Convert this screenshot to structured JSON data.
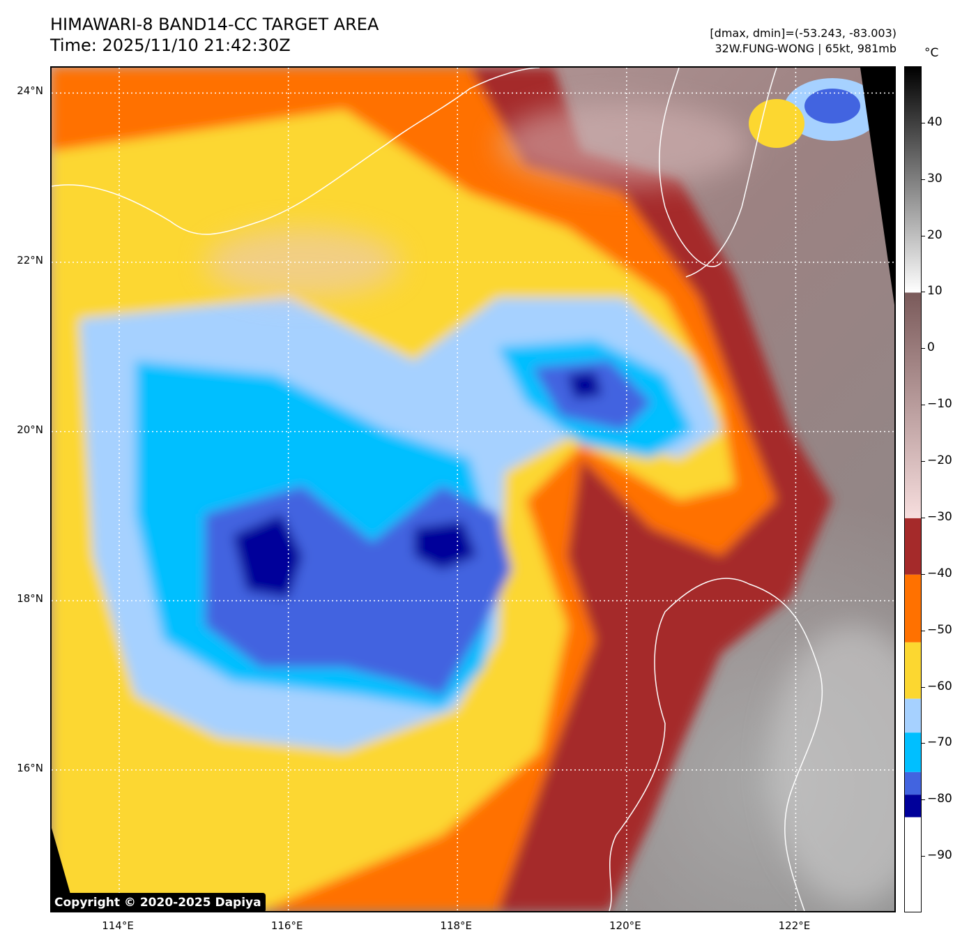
{
  "title": {
    "line1": "HIMAWARI-8 BAND14-CC TARGET AREA",
    "line2": "Time: 2025/11/10 21:42:30Z"
  },
  "meta": {
    "dmax_dmin": "[dmax, dmin]=(-53.243, -83.003)",
    "storm": "32W.FUNG-WONG | 65kt, 981mb"
  },
  "copyright": "Copyright © 2020-2025 Dapiya",
  "map": {
    "lat_labels": [
      "24°N",
      "22°N",
      "20°N",
      "18°N",
      "16°N"
    ],
    "lon_labels": [
      "114°E",
      "116°E",
      "118°E",
      "120°E",
      "122°E"
    ],
    "lat_ticks": [
      24,
      22,
      20,
      18,
      16
    ],
    "lon_ticks": [
      114,
      116,
      118,
      120,
      122
    ],
    "lat_range": [
      14.3,
      24.3
    ],
    "lon_range": [
      113.2,
      123.2
    ],
    "gridlines": "dotted white"
  },
  "colorbar": {
    "unit": "°C",
    "labels": [
      "40",
      "30",
      "20",
      "10",
      "0",
      "−10",
      "−20",
      "−30",
      "−40",
      "−50",
      "−60",
      "−70",
      "−80",
      "−90"
    ],
    "values": [
      40,
      30,
      20,
      10,
      0,
      -10,
      -20,
      -30,
      -40,
      -50,
      -60,
      -70,
      -80,
      -90
    ],
    "range": [
      -100,
      50
    ],
    "bands": [
      {
        "from": 10,
        "to": 50,
        "kind": "gray-ramp"
      },
      {
        "from": -30,
        "to": 10,
        "kind": "brown-pink-ramp"
      },
      {
        "from": -40,
        "to": -30,
        "color": "#a52a2a"
      },
      {
        "from": -52,
        "to": -40,
        "color": "#ff7100"
      },
      {
        "from": -62,
        "to": -52,
        "color": "#fcd730"
      },
      {
        "from": -68,
        "to": -62,
        "color": "#a6d1ff"
      },
      {
        "from": -75,
        "to": -68,
        "color": "#00bfff"
      },
      {
        "from": -79,
        "to": -75,
        "color": "#4264e0"
      },
      {
        "from": -83,
        "to": -79,
        "color": "#00009a"
      },
      {
        "from": -100,
        "to": -83,
        "color": "#ffffff"
      }
    ]
  }
}
